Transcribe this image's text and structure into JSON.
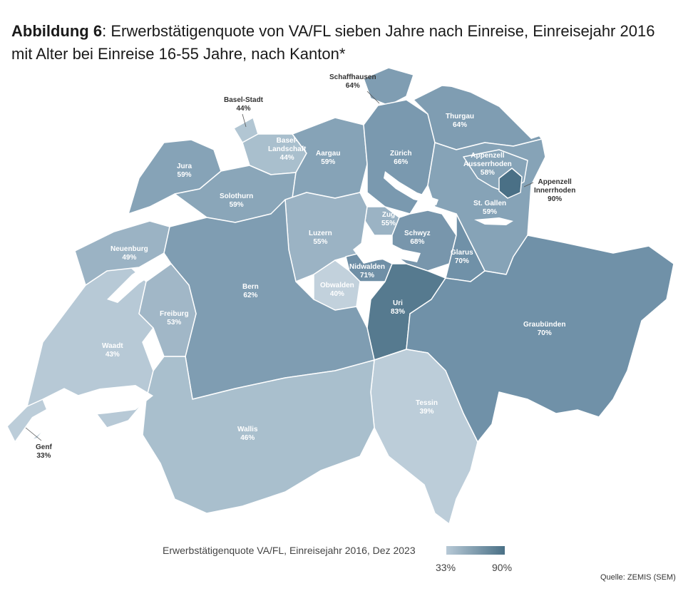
{
  "title": {
    "bold": "Abbildung 6",
    "text": ": Erwerbstätigenquote von VA/FL sieben Jahre nach Einreise, Einreisejahr 2016",
    "line2": "mit Alter bei Einreise 16-55 Jahre, nach Kanton*"
  },
  "colors": {
    "low": "#b7c9d6",
    "high": "#4a7086",
    "border": "#ffffff",
    "lake": "#ffffff"
  },
  "cantons": [
    {
      "name": "Schaffhausen",
      "value": "64%"
    },
    {
      "name": "Basel-Stadt",
      "value": "44%"
    },
    {
      "name": "Thurgau",
      "value": "64%"
    },
    {
      "name": "Basel-Landschaft",
      "value": "44%"
    },
    {
      "name": "Aargau",
      "value": "59%"
    },
    {
      "name": "Zürich",
      "value": "66%"
    },
    {
      "name": "Jura",
      "value": "59%"
    },
    {
      "name": "Appenzell Ausserrhoden",
      "value": "58%"
    },
    {
      "name": "Appenzell Innerrhoden",
      "value": "90%"
    },
    {
      "name": "Solothurn",
      "value": "59%"
    },
    {
      "name": "St. Gallen",
      "value": "59%"
    },
    {
      "name": "Zug",
      "value": "55%"
    },
    {
      "name": "Luzern",
      "value": "55%"
    },
    {
      "name": "Schwyz",
      "value": "68%"
    },
    {
      "name": "Neuenburg",
      "value": "49%"
    },
    {
      "name": "Glarus",
      "value": "70%"
    },
    {
      "name": "Nidwalden",
      "value": "71%"
    },
    {
      "name": "Obwalden",
      "value": "40%"
    },
    {
      "name": "Bern",
      "value": "62%"
    },
    {
      "name": "Uri",
      "value": "83%"
    },
    {
      "name": "Freiburg",
      "value": "53%"
    },
    {
      "name": "Graubünden",
      "value": "70%"
    },
    {
      "name": "Waadt",
      "value": "43%"
    },
    {
      "name": "Tessin",
      "value": "39%"
    },
    {
      "name": "Wallis",
      "value": "46%"
    },
    {
      "name": "Genf",
      "value": "33%"
    }
  ],
  "labels": {
    "basel_landschaft_line1": "Basel-",
    "basel_landschaft_line2": "Landschaft",
    "appenzell_ar_line1": "Appenzell",
    "appenzell_ar_line2": "Ausserrhoden",
    "appenzell_ir_line1": "Appenzell",
    "appenzell_ir_line2": "Innerrhoden"
  },
  "legend": {
    "title": "Erwerbstätigenquote VA/FL, Einreisejahr 2016, Dez 2023",
    "min": "33%",
    "max": "90%"
  },
  "source": "Quelle: ZEMIS (SEM)"
}
